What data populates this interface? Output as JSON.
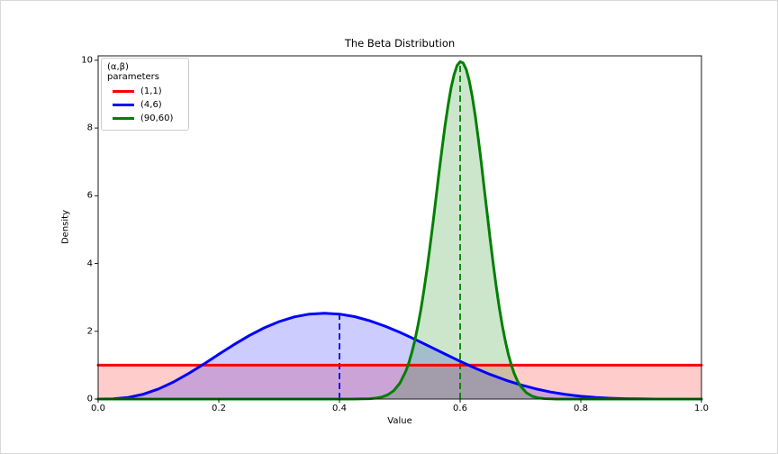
{
  "chart_data": {
    "type": "line",
    "title": "The Beta Distribution",
    "xlabel": "Value",
    "ylabel": "Density",
    "xlim": [
      0.0,
      1.0
    ],
    "ylim": [
      0,
      10.13
    ],
    "grid": false,
    "x_ticks": [
      "0.0",
      "0.2",
      "0.4",
      "0.6",
      "0.8",
      "1.0"
    ],
    "x_tick_values": [
      0.0,
      0.2,
      0.4,
      0.6,
      0.8,
      1.0
    ],
    "y_ticks": [
      "0",
      "2",
      "4",
      "6",
      "8",
      "10"
    ],
    "y_tick_values": [
      0,
      2,
      4,
      6,
      8,
      10
    ],
    "legend": {
      "title": "(α,β) parameters",
      "position": "upper left",
      "entries": [
        "(1,1)",
        "(4,6)",
        "(90,60)"
      ]
    },
    "axis_color": "#1a1a1a",
    "series": [
      {
        "name": "(1,1)",
        "alpha": 1,
        "beta": 1,
        "color": "#ff0000",
        "line_width": 3,
        "fill": true,
        "fill_opacity": 0.2,
        "mean_line": null,
        "points": [
          [
            0,
            1
          ],
          [
            1,
            1
          ]
        ]
      },
      {
        "name": "(4,6)",
        "alpha": 4,
        "beta": 6,
        "color": "#0000ff",
        "line_width": 3,
        "fill": true,
        "fill_opacity": 0.2,
        "mean_line": {
          "x": 0.4,
          "y": 2.508,
          "style": "dashed"
        },
        "points": [
          [
            0,
            0
          ],
          [
            0.025,
            0.007
          ],
          [
            0.05,
            0.049
          ],
          [
            0.075,
            0.144
          ],
          [
            0.1,
            0.298
          ],
          [
            0.125,
            0.505
          ],
          [
            0.15,
            0.755
          ],
          [
            0.175,
            1.032
          ],
          [
            0.2,
            1.321
          ],
          [
            0.225,
            1.605
          ],
          [
            0.25,
            1.869
          ],
          [
            0.275,
            2.1
          ],
          [
            0.3,
            2.287
          ],
          [
            0.325,
            2.424
          ],
          [
            0.35,
            2.507
          ],
          [
            0.375,
            2.535
          ],
          [
            0.4,
            2.508
          ],
          [
            0.425,
            2.432
          ],
          [
            0.45,
            2.311
          ],
          [
            0.475,
            2.154
          ],
          [
            0.5,
            1.969
          ],
          [
            0.525,
            1.763
          ],
          [
            0.55,
            1.547
          ],
          [
            0.575,
            1.329
          ],
          [
            0.6,
            1.115
          ],
          [
            0.625,
            0.913
          ],
          [
            0.65,
            0.727
          ],
          [
            0.675,
            0.562
          ],
          [
            0.7,
            0.42
          ],
          [
            0.725,
            0.302
          ],
          [
            0.75,
            0.208
          ],
          [
            0.775,
            0.135
          ],
          [
            0.8,
            0.083
          ],
          [
            0.825,
            0.046
          ],
          [
            0.85,
            0.024
          ],
          [
            0.875,
            0.01
          ],
          [
            0.9,
            0.004
          ],
          [
            0.925,
            0.001
          ],
          [
            0.95,
            0
          ],
          [
            1,
            0
          ]
        ]
      },
      {
        "name": "(90,60)",
        "alpha": 90,
        "beta": 60,
        "color": "#008000",
        "line_width": 3,
        "fill": true,
        "fill_opacity": 0.2,
        "mean_line": {
          "x": 0.6,
          "y": 9.958,
          "style": "dashed"
        },
        "points": [
          [
            0,
            0
          ],
          [
            0.4,
            0
          ],
          [
            0.42,
            0.001
          ],
          [
            0.43,
            0.002
          ],
          [
            0.44,
            0.004
          ],
          [
            0.45,
            0.011
          ],
          [
            0.46,
            0.026
          ],
          [
            0.47,
            0.059
          ],
          [
            0.48,
            0.125
          ],
          [
            0.49,
            0.248
          ],
          [
            0.5,
            0.466
          ],
          [
            0.51,
            0.825
          ],
          [
            0.515,
            1.073
          ],
          [
            0.52,
            1.376
          ],
          [
            0.525,
            1.739
          ],
          [
            0.53,
            2.165
          ],
          [
            0.535,
            2.657
          ],
          [
            0.54,
            3.213
          ],
          [
            0.545,
            3.83
          ],
          [
            0.55,
            4.497
          ],
          [
            0.555,
            5.207
          ],
          [
            0.56,
            5.938
          ],
          [
            0.565,
            6.675
          ],
          [
            0.57,
            7.39
          ],
          [
            0.575,
            8.065
          ],
          [
            0.58,
            8.669
          ],
          [
            0.585,
            9.182
          ],
          [
            0.59,
            9.578
          ],
          [
            0.595,
            9.846
          ],
          [
            0.6,
            9.958
          ],
          [
            0.605,
            9.919
          ],
          [
            0.61,
            9.736
          ],
          [
            0.615,
            9.403
          ],
          [
            0.62,
            8.938
          ],
          [
            0.625,
            8.363
          ],
          [
            0.63,
            7.698
          ],
          [
            0.635,
            6.971
          ],
          [
            0.64,
            6.209
          ],
          [
            0.645,
            5.438
          ],
          [
            0.65,
            4.682
          ],
          [
            0.655,
            3.962
          ],
          [
            0.66,
            3.295
          ],
          [
            0.665,
            2.692
          ],
          [
            0.67,
            2.159
          ],
          [
            0.675,
            1.699
          ],
          [
            0.68,
            1.313
          ],
          [
            0.685,
            0.994
          ],
          [
            0.69,
            0.74
          ],
          [
            0.695,
            0.539
          ],
          [
            0.7,
            0.385
          ],
          [
            0.71,
            0.184
          ],
          [
            0.72,
            0.081
          ],
          [
            0.73,
            0.032
          ],
          [
            0.74,
            0.012
          ],
          [
            0.75,
            0.004
          ],
          [
            0.76,
            0.001
          ],
          [
            0.78,
            0
          ],
          [
            1,
            0
          ]
        ]
      }
    ]
  }
}
